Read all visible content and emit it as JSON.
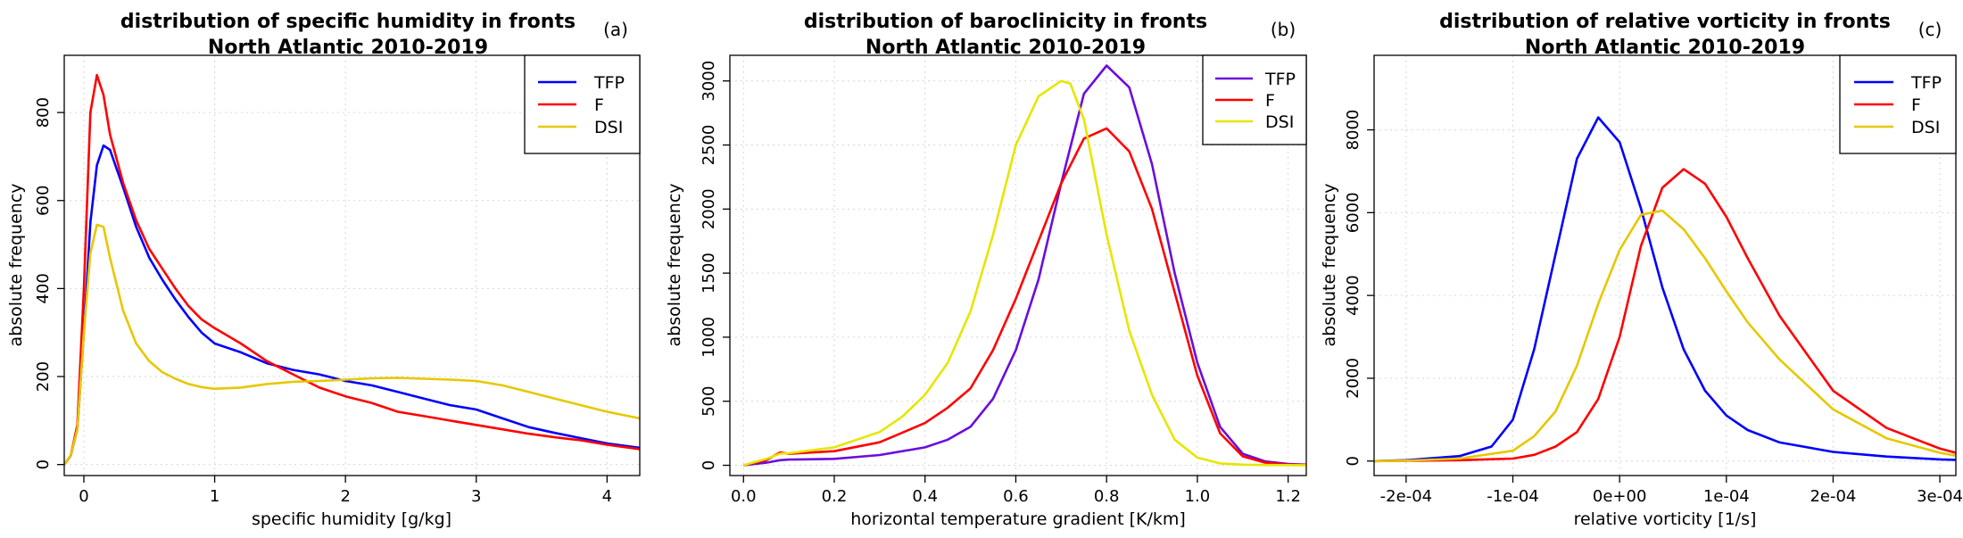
{
  "chart_data": [
    {
      "type": "line",
      "title": "distribution of specific humidity in fronts",
      "subtitle": "North Atlantic 2010-2019",
      "panel": "(a)",
      "xlabel": "specific humidity [g/kg]",
      "ylabel": "absolute frequency",
      "xlim": [
        -0.15,
        4.25
      ],
      "ylim": [
        -25,
        930
      ],
      "xticks": [
        0,
        1,
        2,
        3,
        4
      ],
      "xtick_labels": [
        "0",
        "1",
        "2",
        "3",
        "4"
      ],
      "yticks": [
        0,
        200,
        400,
        600,
        800
      ],
      "ytick_labels": [
        "0",
        "200",
        "400",
        "600",
        "800"
      ],
      "grid": true,
      "legend_position": "top-right",
      "series": [
        {
          "name": "TFP",
          "color": "#0000ff",
          "x": [
            -0.15,
            -0.1,
            -0.05,
            0,
            0.05,
            0.1,
            0.15,
            0.2,
            0.3,
            0.4,
            0.5,
            0.6,
            0.7,
            0.8,
            0.9,
            1.0,
            1.2,
            1.4,
            1.6,
            1.8,
            2.0,
            2.2,
            2.4,
            2.6,
            2.8,
            3.0,
            3.2,
            3.4,
            3.6,
            3.8,
            4.0,
            4.25
          ],
          "y": [
            0,
            20,
            80,
            300,
            550,
            680,
            725,
            715,
            630,
            540,
            470,
            420,
            375,
            335,
            300,
            275,
            255,
            230,
            215,
            205,
            190,
            180,
            165,
            150,
            135,
            125,
            105,
            85,
            72,
            60,
            48,
            38
          ]
        },
        {
          "name": "F",
          "color": "#ff0000",
          "x": [
            -0.15,
            -0.1,
            -0.05,
            0,
            0.05,
            0.1,
            0.15,
            0.2,
            0.3,
            0.4,
            0.5,
            0.6,
            0.7,
            0.8,
            0.9,
            1.0,
            1.2,
            1.4,
            1.6,
            1.8,
            2.0,
            2.2,
            2.4,
            2.6,
            2.8,
            3.0,
            3.2,
            3.4,
            3.6,
            3.8,
            4.0,
            4.25
          ],
          "y": [
            0,
            20,
            90,
            400,
            800,
            885,
            840,
            750,
            640,
            555,
            490,
            445,
            400,
            360,
            330,
            310,
            275,
            235,
            205,
            175,
            155,
            140,
            120,
            110,
            100,
            90,
            80,
            70,
            62,
            55,
            45,
            35
          ]
        },
        {
          "name": "DSI",
          "color": "#e6c800",
          "x": [
            -0.15,
            -0.1,
            -0.05,
            0,
            0.05,
            0.1,
            0.15,
            0.2,
            0.3,
            0.4,
            0.5,
            0.6,
            0.7,
            0.8,
            0.9,
            1.0,
            1.2,
            1.4,
            1.6,
            1.8,
            2.0,
            2.2,
            2.4,
            2.6,
            2.8,
            3.0,
            3.2,
            3.4,
            3.6,
            3.8,
            4.0,
            4.25
          ],
          "y": [
            0,
            20,
            80,
            300,
            480,
            545,
            540,
            470,
            350,
            275,
            235,
            210,
            195,
            183,
            176,
            172,
            175,
            183,
            188,
            190,
            193,
            196,
            197,
            195,
            193,
            190,
            180,
            165,
            150,
            135,
            120,
            105
          ]
        }
      ]
    },
    {
      "type": "line",
      "title": "distribution of baroclinicity in fronts",
      "subtitle": "North Atlantic 2010-2019",
      "panel": "(b)",
      "xlabel": "horizontal temperature gradient [K/km]",
      "ylabel": "absolute frequency",
      "xlim": [
        -0.03,
        1.24
      ],
      "ylim": [
        -80,
        3200
      ],
      "xticks": [
        0,
        0.2,
        0.4,
        0.6,
        0.8,
        1.0,
        1.2
      ],
      "xtick_labels": [
        "0.0",
        "0.2",
        "0.4",
        "0.6",
        "0.8",
        "1.0",
        "1.2"
      ],
      "yticks": [
        0,
        500,
        1000,
        1500,
        2000,
        2500,
        3000
      ],
      "ytick_labels": [
        "0",
        "500",
        "1000",
        "1500",
        "2000",
        "2500",
        "3000"
      ],
      "grid": true,
      "legend_position": "top-right",
      "series": [
        {
          "name": "TFP",
          "color": "#6a0ddd",
          "x": [
            0,
            0.05,
            0.08,
            0.1,
            0.2,
            0.3,
            0.4,
            0.45,
            0.5,
            0.55,
            0.6,
            0.65,
            0.7,
            0.75,
            0.8,
            0.85,
            0.9,
            0.95,
            1.0,
            1.05,
            1.1,
            1.15,
            1.2,
            1.24
          ],
          "y": [
            0,
            20,
            40,
            45,
            50,
            80,
            140,
            200,
            300,
            520,
            900,
            1450,
            2200,
            2900,
            3120,
            2950,
            2350,
            1500,
            800,
            300,
            90,
            30,
            10,
            5
          ]
        },
        {
          "name": "F",
          "color": "#ff0000",
          "x": [
            0,
            0.05,
            0.08,
            0.1,
            0.2,
            0.3,
            0.4,
            0.45,
            0.5,
            0.55,
            0.6,
            0.65,
            0.7,
            0.75,
            0.8,
            0.85,
            0.9,
            0.95,
            1.0,
            1.05,
            1.1,
            1.15,
            1.2,
            1.24
          ],
          "y": [
            0,
            40,
            100,
            90,
            110,
            180,
            330,
            450,
            600,
            900,
            1300,
            1750,
            2200,
            2550,
            2630,
            2450,
            2000,
            1350,
            700,
            250,
            70,
            20,
            5,
            2
          ]
        },
        {
          "name": "DSI",
          "color": "#e6e600",
          "x": [
            0,
            0.05,
            0.08,
            0.1,
            0.2,
            0.3,
            0.35,
            0.4,
            0.45,
            0.5,
            0.55,
            0.6,
            0.65,
            0.7,
            0.72,
            0.75,
            0.8,
            0.85,
            0.9,
            0.95,
            1.0,
            1.05,
            1.1,
            1.15,
            1.24
          ],
          "y": [
            0,
            50,
            90,
            95,
            140,
            260,
            380,
            550,
            800,
            1200,
            1800,
            2500,
            2880,
            3000,
            2980,
            2700,
            1800,
            1050,
            550,
            200,
            60,
            15,
            5,
            2,
            1
          ]
        }
      ]
    },
    {
      "type": "line",
      "title": "distribution of relative vorticity in fronts",
      "subtitle": "North Atlantic 2010-2019",
      "panel": "(c)",
      "xlabel": "relative vorticity [1/s]",
      "ylabel": "absolute frequency",
      "xlim": [
        -0.00023,
        0.000315
      ],
      "ylim": [
        -350,
        9800
      ],
      "xticks": [
        -0.0002,
        -0.0001,
        0,
        0.0001,
        0.0002,
        0.0003
      ],
      "xtick_labels": [
        "-2e-04",
        "-1e-04",
        "0e+00",
        "1e-04",
        "2e-04",
        "3e-04"
      ],
      "yticks": [
        0,
        2000,
        4000,
        6000,
        8000
      ],
      "ytick_labels": [
        "0",
        "2000",
        "4000",
        "6000",
        "8000"
      ],
      "grid": true,
      "legend_position": "top-right",
      "series": [
        {
          "name": "TFP",
          "color": "#0000ff",
          "x": [
            -0.00023,
            -0.0002,
            -0.00015,
            -0.00012,
            -0.0001,
            -8e-05,
            -6e-05,
            -4e-05,
            -2e-05,
            0,
            2e-05,
            4e-05,
            6e-05,
            8e-05,
            0.0001,
            0.00012,
            0.00015,
            0.0002,
            0.00025,
            0.0003,
            0.000315
          ],
          "y": [
            0,
            20,
            120,
            350,
            1000,
            2700,
            5000,
            7300,
            8300,
            7700,
            6100,
            4200,
            2700,
            1700,
            1100,
            750,
            450,
            220,
            110,
            40,
            30
          ]
        },
        {
          "name": "F",
          "color": "#ff0000",
          "x": [
            -0.00023,
            -0.0002,
            -0.00015,
            -0.0001,
            -8e-05,
            -6e-05,
            -4e-05,
            -2e-05,
            0,
            2e-05,
            4e-05,
            6e-05,
            8e-05,
            0.0001,
            0.00012,
            0.00015,
            0.0002,
            0.00025,
            0.0003,
            0.000315
          ],
          "y": [
            0,
            5,
            20,
            60,
            150,
            350,
            700,
            1500,
            3000,
            5200,
            6600,
            7050,
            6700,
            5900,
            4900,
            3500,
            1700,
            800,
            300,
            200
          ]
        },
        {
          "name": "DSI",
          "color": "#e6c800",
          "x": [
            -0.00023,
            -0.0002,
            -0.00015,
            -0.0001,
            -8e-05,
            -6e-05,
            -4e-05,
            -2e-05,
            0,
            2e-05,
            4e-05,
            6e-05,
            8e-05,
            0.0001,
            0.00012,
            0.00015,
            0.0002,
            0.00025,
            0.0003,
            0.000315
          ],
          "y": [
            0,
            10,
            60,
            250,
            600,
            1200,
            2300,
            3800,
            5100,
            5950,
            6050,
            5600,
            4900,
            4100,
            3350,
            2450,
            1250,
            550,
            200,
            130
          ]
        }
      ]
    }
  ]
}
